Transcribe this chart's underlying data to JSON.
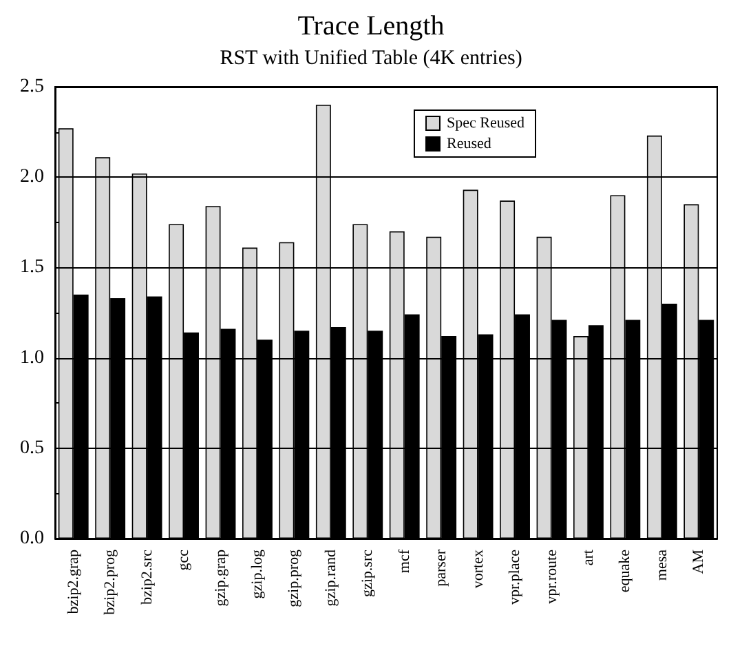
{
  "chart_data": {
    "type": "bar",
    "title": "Trace Length",
    "subtitle": "RST with Unified Table (4K entries)",
    "categories": [
      "bzip2.grap",
      "bzip2.prog",
      "bzip2.src",
      "gcc",
      "gzip.grap",
      "gzip.log",
      "gzip.prog",
      "gzip.rand",
      "gzip.src",
      "mcf",
      "parser",
      "vortex",
      "vpr.place",
      "vpr.route",
      "art",
      "equake",
      "mesa",
      "AM"
    ],
    "series": [
      {
        "name": "Spec Reused",
        "color": "#d9d9d9",
        "values": [
          2.27,
          2.11,
          2.02,
          1.74,
          1.84,
          1.61,
          1.64,
          2.4,
          1.74,
          1.7,
          1.67,
          1.93,
          1.87,
          1.67,
          1.12,
          1.9,
          2.23,
          1.85
        ]
      },
      {
        "name": "Reused",
        "color": "#000000",
        "values": [
          1.35,
          1.33,
          1.34,
          1.14,
          1.16,
          1.1,
          1.15,
          1.17,
          1.15,
          1.24,
          1.12,
          1.13,
          1.24,
          1.21,
          1.18,
          1.21,
          1.3,
          1.21
        ]
      }
    ],
    "ylim": [
      0,
      2.5
    ],
    "yticks": [
      {
        "value": 0,
        "label": "0.0"
      },
      {
        "value": 0.25,
        "label": null
      },
      {
        "value": 0.5,
        "label": "0.5"
      },
      {
        "value": 0.75,
        "label": null
      },
      {
        "value": 1,
        "label": "1.0"
      },
      {
        "value": 1.25,
        "label": null
      },
      {
        "value": 1.5,
        "label": "1.5"
      },
      {
        "value": 1.75,
        "label": null
      },
      {
        "value": 2,
        "label": "2.0"
      },
      {
        "value": 2.25,
        "label": null
      },
      {
        "value": 2.5,
        "label": "2.5"
      }
    ],
    "grid": "y",
    "legend": "top right"
  }
}
